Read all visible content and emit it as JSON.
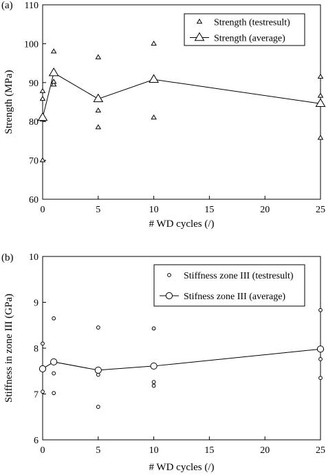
{
  "chart_data": [
    {
      "type": "scatter",
      "panel_label": "(a)",
      "xlabel": "# WD cycles (/)",
      "ylabel": "Strength (MPa)",
      "xlim": [
        0,
        25
      ],
      "ylim": [
        60,
        110
      ],
      "xticks": [
        0,
        5,
        10,
        15,
        20,
        25
      ],
      "yticks": [
        60,
        70,
        80,
        90,
        100,
        110
      ],
      "grid": false,
      "legend_position": "top-right",
      "marker": "triangle",
      "series": [
        {
          "name": "Strength (testresult)",
          "style": "markers",
          "points": [
            [
              0,
              70
            ],
            [
              0,
              80.5
            ],
            [
              0,
              85.8
            ],
            [
              0,
              87.8
            ],
            [
              1,
              89.5
            ],
            [
              1,
              90.2
            ],
            [
              1,
              98
            ],
            [
              5,
              78.5
            ],
            [
              5,
              82.8
            ],
            [
              5,
              96.5
            ],
            [
              10,
              81
            ],
            [
              10,
              91.3
            ],
            [
              10,
              100
            ],
            [
              25,
              75.8
            ],
            [
              25,
              86.6
            ],
            [
              25,
              91.5
            ]
          ]
        },
        {
          "name": "Strength (average)",
          "style": "line+markers",
          "points": [
            [
              0,
              81
            ],
            [
              1,
              92.5
            ],
            [
              5,
              85.8
            ],
            [
              10,
              90.8
            ],
            [
              25,
              84.6
            ]
          ]
        }
      ]
    },
    {
      "type": "scatter",
      "panel_label": "(b)",
      "xlabel": "# WD cycles (/)",
      "ylabel": "Stiffness in zone III (GPa)",
      "xlim": [
        0,
        25
      ],
      "ylim": [
        6,
        10
      ],
      "xticks": [
        0,
        5,
        10,
        15,
        20,
        25
      ],
      "yticks": [
        6,
        7,
        8,
        9,
        10
      ],
      "grid": false,
      "legend_position": "top-right",
      "marker": "circle",
      "series": [
        {
          "name": "Stiffness zone III (testresult)",
          "style": "markers",
          "points": [
            [
              0,
              7.05
            ],
            [
              0,
              7.55
            ],
            [
              0,
              8.1
            ],
            [
              1,
              7.02
            ],
            [
              1,
              7.45
            ],
            [
              1,
              8.65
            ],
            [
              5,
              6.72
            ],
            [
              5,
              7.42
            ],
            [
              5,
              8.45
            ],
            [
              10,
              7.18
            ],
            [
              10,
              7.26
            ],
            [
              10,
              8.43
            ],
            [
              25,
              7.35
            ],
            [
              25,
              7.76
            ],
            [
              25,
              8.83
            ]
          ]
        },
        {
          "name": "Stifness zone III (average)",
          "style": "line+markers",
          "points": [
            [
              0,
              7.55
            ],
            [
              1,
              7.7
            ],
            [
              5,
              7.52
            ],
            [
              10,
              7.61
            ],
            [
              25,
              7.98
            ]
          ]
        }
      ]
    }
  ]
}
